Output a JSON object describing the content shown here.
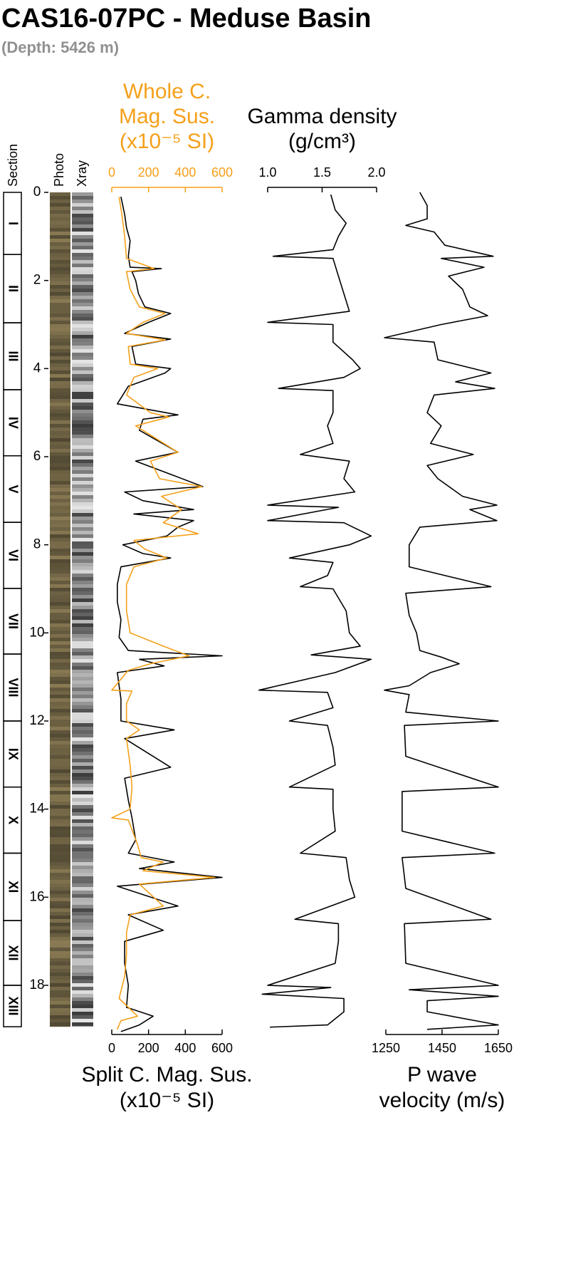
{
  "chart_data": {
    "type": "line",
    "title": "CAS16-07PC - Meduse Basin",
    "subtitle": "(Depth: 5426 m)",
    "ylim": [
      0,
      19.1
    ],
    "yticks": [
      0,
      2,
      4,
      6,
      8,
      10,
      12,
      14,
      16,
      18
    ],
    "sections": {
      "label": "Section",
      "names": [
        "I",
        "II",
        "III",
        "IV",
        "V",
        "VI",
        "VII",
        "VIII",
        "IX",
        "X",
        "XI",
        "XII",
        "XIII"
      ],
      "boundaries": [
        0,
        1.41,
        2.96,
        4.48,
        5.98,
        7.49,
        8.99,
        10.48,
        12.0,
        13.5,
        15.0,
        16.53,
        18.0,
        18.94
      ]
    },
    "image_columns": [
      "Photo",
      "Xray"
    ],
    "panels": [
      {
        "axes": [
          {
            "position": "top",
            "color": "#f5a01a",
            "label": [
              "Whole C.",
              "Mag. Sus.",
              "(x10⁻⁵ SI)"
            ],
            "xlim": [
              0,
              600
            ],
            "xticks": [
              0,
              200,
              400,
              600
            ]
          },
          {
            "position": "bottom",
            "color": "#000000",
            "label": [
              "Split C. Mag. Sus.",
              "(x10⁻⁵ SI)"
            ],
            "xlim": [
              0,
              600
            ],
            "xticks": [
              0,
              200,
              400,
              600
            ]
          }
        ],
        "series": [
          {
            "axis": 1,
            "color": "#000000",
            "depth": [
              0.1,
              0.5,
              0.8,
              1.1,
              1.45,
              1.7,
              1.73,
              1.8,
              2.0,
              2.3,
              2.6,
              2.75,
              2.95,
              3.2,
              3.33,
              3.5,
              3.9,
              4.0,
              4.1,
              4.4,
              4.8,
              5.05,
              5.15,
              5.4,
              5.9,
              6.1,
              6.4,
              6.68,
              6.8,
              7.0,
              7.2,
              7.3,
              7.45,
              7.6,
              7.8,
              8.0,
              8.2,
              8.3,
              8.5,
              8.9,
              9.3,
              9.7,
              10.1,
              10.4,
              10.52,
              10.6,
              10.75,
              10.9,
              11.5,
              12.0,
              12.2,
              12.4,
              13.05,
              13.3,
              13.8,
              14.2,
              14.7,
              15.0,
              15.2,
              15.35,
              15.55,
              15.75,
              16.2,
              16.4,
              16.75,
              17.0,
              17.5,
              18.0,
              18.5,
              18.7,
              18.9,
              19.05
            ],
            "values": [
              50,
              70,
              80,
              100,
              90,
              100,
              270,
              110,
              130,
              145,
              180,
              320,
              200,
              70,
              320,
              110,
              130,
              320,
              290,
              90,
              30,
              360,
              170,
              150,
              360,
              130,
              320,
              495,
              70,
              170,
              445,
              120,
              445,
              360,
              300,
              60,
              170,
              320,
              50,
              30,
              30,
              50,
              40,
              90,
              600,
              150,
              285,
              30,
              50,
              50,
              340,
              70,
              320,
              70,
              90,
              110,
              130,
              90,
              340,
              150,
              600,
              30,
              360,
              90,
              280,
              70,
              70,
              90,
              80,
              225,
              150,
              50
            ]
          },
          {
            "axis": 0,
            "color": "#f5a01a",
            "depth": [
              0.1,
              0.5,
              1.0,
              1.5,
              1.73,
              1.8,
              2.2,
              2.6,
              2.75,
              2.95,
              3.2,
              3.35,
              3.5,
              3.9,
              4.0,
              4.2,
              4.6,
              5.0,
              5.1,
              5.3,
              5.9,
              6.1,
              6.5,
              6.68,
              6.9,
              7.2,
              7.5,
              7.75,
              7.9,
              8.1,
              8.3,
              8.5,
              8.9,
              9.5,
              10.0,
              10.3,
              10.52,
              10.7,
              10.85,
              11.3,
              11.32,
              11.6,
              12.0,
              12.2,
              12.4,
              13.0,
              13.5,
              14.0,
              14.2,
              14.25,
              14.8,
              15.1,
              15.2,
              15.4,
              15.55,
              15.7,
              16.2,
              16.4,
              16.8,
              17.3,
              17.8,
              18.3,
              18.7,
              18.8,
              19.0
            ],
            "values": [
              40,
              55,
              70,
              80,
              230,
              80,
              100,
              150,
              290,
              170,
              80,
              290,
              90,
              100,
              250,
              120,
              80,
              210,
              310,
              130,
              360,
              210,
              260,
              490,
              270,
              380,
              280,
              470,
              120,
              180,
              300,
              120,
              80,
              80,
              100,
              280,
              420,
              210,
              90,
              0,
              110,
              80,
              80,
              150,
              80,
              100,
              110,
              100,
              0,
              90,
              140,
              160,
              280,
              170,
              560,
              150,
              280,
              100,
              80,
              80,
              70,
              40,
              140,
              50,
              30
            ]
          }
        ]
      },
      {
        "axes": [
          {
            "position": "top",
            "color": "#000000",
            "label": [
              "Gamma density",
              "(g/cm³)"
            ],
            "xlim": [
              1,
              2
            ],
            "xticks": [
              {
                "value": 1,
                "label": "1.0"
              },
              {
                "value": 1.5,
                "label": "1.5"
              },
              {
                "value": 2,
                "label": "2.0"
              }
            ]
          }
        ],
        "series": [
          {
            "axis": 0,
            "color": "#000000",
            "depth": [
              0.05,
              0.4,
              0.7,
              1.0,
              1.3,
              1.45,
              1.5,
              1.9,
              2.3,
              2.7,
              2.95,
              3.0,
              3.4,
              3.8,
              4.0,
              4.2,
              4.45,
              4.5,
              5.0,
              5.3,
              5.7,
              5.95,
              6.1,
              6.5,
              6.8,
              7.1,
              7.15,
              7.45,
              7.5,
              7.8,
              8.0,
              8.3,
              8.4,
              8.7,
              8.95,
              9.0,
              9.5,
              10.0,
              10.3,
              10.5,
              10.6,
              10.9,
              11.3,
              11.35,
              11.7,
              12.0,
              12.1,
              12.6,
              13.0,
              13.5,
              13.55,
              14.0,
              14.5,
              15.0,
              15.1,
              15.6,
              16.0,
              16.5,
              16.6,
              17.0,
              17.5,
              18.0,
              18.05,
              18.2,
              18.3,
              18.6,
              18.9,
              18.95
            ],
            "values": [
              1.58,
              1.62,
              1.72,
              1.65,
              1.6,
              1.05,
              1.6,
              1.65,
              1.7,
              1.75,
              1.0,
              1.6,
              1.6,
              1.78,
              1.85,
              1.7,
              1.1,
              1.6,
              1.6,
              1.55,
              1.6,
              1.3,
              1.75,
              1.7,
              1.8,
              1.0,
              1.65,
              1.0,
              1.7,
              1.95,
              1.75,
              1.2,
              1.6,
              1.55,
              1.3,
              1.6,
              1.72,
              1.75,
              1.85,
              1.4,
              1.95,
              1.62,
              0.92,
              1.55,
              1.6,
              1.2,
              1.55,
              1.6,
              1.62,
              1.2,
              1.6,
              1.6,
              1.62,
              1.3,
              1.72,
              1.75,
              1.8,
              1.25,
              1.65,
              1.65,
              1.62,
              1.0,
              1.58,
              0.95,
              1.7,
              1.7,
              1.55,
              1.02
            ]
          }
        ]
      },
      {
        "axes": [
          {
            "position": "bottom",
            "color": "#000000",
            "label": [
              "P wave",
              "velocity (m/s)"
            ],
            "xlim": [
              1250,
              1650
            ],
            "xticks": [
              1250,
              1450,
              1650
            ]
          }
        ],
        "series": [
          {
            "axis": 0,
            "color": "#000000",
            "depth": [
              0,
              0.3,
              0.6,
              0.75,
              0.9,
              1.2,
              1.45,
              1.5,
              1.7,
              1.9,
              2.2,
              2.6,
              2.8,
              3.0,
              3.3,
              3.4,
              3.8,
              4.1,
              4.3,
              4.45,
              4.6,
              5.0,
              5.3,
              5.7,
              5.95,
              6.2,
              6.5,
              6.9,
              7.1,
              7.2,
              7.45,
              7.6,
              8.0,
              8.5,
              8.95,
              9.1,
              9.6,
              10.0,
              10.4,
              10.55,
              10.7,
              10.9,
              11.2,
              11.3,
              11.4,
              11.8,
              12.0,
              12.1,
              12.8,
              13.5,
              13.6,
              14.5,
              15.0,
              15.1,
              15.8,
              16.5,
              16.6,
              17.5,
              18.0,
              18.1,
              18.25,
              18.35,
              18.6,
              18.9,
              19.0
            ],
            "values": [
              1371,
              1397,
              1397,
              1321,
              1422,
              1460,
              1632,
              1447,
              1599,
              1473,
              1523,
              1549,
              1612,
              1447,
              1245,
              1422,
              1435,
              1624,
              1498,
              1637,
              1422,
              1397,
              1447,
              1409,
              1561,
              1397,
              1435,
              1523,
              1645,
              1549,
              1645,
              1371,
              1333,
              1333,
              1624,
              1321,
              1333,
              1359,
              1371,
              1447,
              1511,
              1409,
              1333,
              1245,
              1333,
              1321,
              1650,
              1316,
              1321,
              1650,
              1308,
              1308,
              1637,
              1308,
              1321,
              1624,
              1316,
              1321,
              1650,
              1333,
              1650,
              1397,
              1397,
              1650,
              1397
            ]
          }
        ]
      }
    ]
  }
}
